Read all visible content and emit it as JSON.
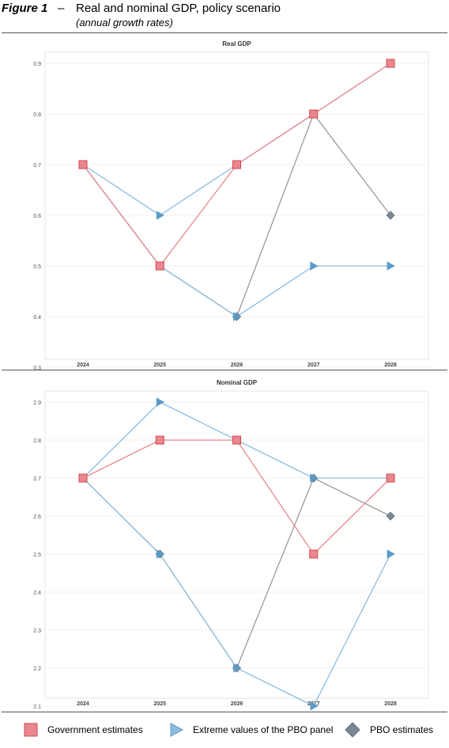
{
  "header": {
    "figure_label": "Figure 1",
    "dash": "–",
    "title": "Real and nominal GDP, policy scenario",
    "subtitle": "(annual growth rates)"
  },
  "colors": {
    "government": "#d9444f",
    "government_fill": "#e8888e",
    "extreme": "#5b9bc8",
    "extreme_line": "#8fbcdd",
    "pbo": "#7d8794",
    "pbo_line": "#9a9a9a",
    "pbo_dark": "#5f6f82"
  },
  "legend": {
    "government": "Government estimates",
    "extreme": "Extreme values of the PBO panel",
    "pbo": "PBO estimates"
  },
  "chart_data": [
    {
      "type": "line",
      "title": "Real GDP",
      "categories": [
        "2024",
        "2025",
        "2026",
        "2027",
        "2028"
      ],
      "ylim": [
        0.3,
        0.9
      ],
      "yticks": [
        "0.3",
        "0.4",
        "0.5",
        "0.6",
        "0.7",
        "0.8",
        "0.9"
      ],
      "grid": true,
      "series": [
        {
          "name": "Government estimates",
          "marker": "square",
          "values": [
            0.7,
            0.5,
            0.7,
            0.8,
            0.9
          ]
        },
        {
          "name": "Extreme values of the PBO panel",
          "marker": "triangle",
          "values": [
            0.7,
            0.6,
            0.7,
            0.8,
            0.9
          ]
        },
        {
          "name": "Extreme values of the PBO panel",
          "marker": "triangle",
          "values": [
            0.7,
            0.5,
            0.4,
            0.5,
            0.5
          ]
        },
        {
          "name": "PBO estimates",
          "marker": "diamond",
          "values": [
            0.7,
            0.5,
            0.4,
            0.8,
            0.6
          ]
        }
      ]
    },
    {
      "type": "line",
      "title": "Nominal GDP",
      "categories": [
        "2024",
        "2025",
        "2026",
        "2027",
        "2028"
      ],
      "ylim": [
        2.1,
        2.9
      ],
      "yticks": [
        "2.1",
        "2.2",
        "2.3",
        "2.4",
        "2.5",
        "2.6",
        "2.7",
        "2.8",
        "2.9"
      ],
      "grid": true,
      "series": [
        {
          "name": "Government estimates",
          "marker": "square",
          "values": [
            2.7,
            2.8,
            2.8,
            2.5,
            2.7
          ]
        },
        {
          "name": "Extreme values of the PBO panel",
          "marker": "triangle",
          "values": [
            2.7,
            2.9,
            2.8,
            2.7,
            2.7
          ]
        },
        {
          "name": "Extreme values of the PBO panel",
          "marker": "triangle",
          "values": [
            2.7,
            2.5,
            2.2,
            2.1,
            2.5
          ]
        },
        {
          "name": "PBO estimates",
          "marker": "diamond",
          "values": [
            2.7,
            2.5,
            2.2,
            2.7,
            2.6
          ]
        }
      ]
    }
  ]
}
